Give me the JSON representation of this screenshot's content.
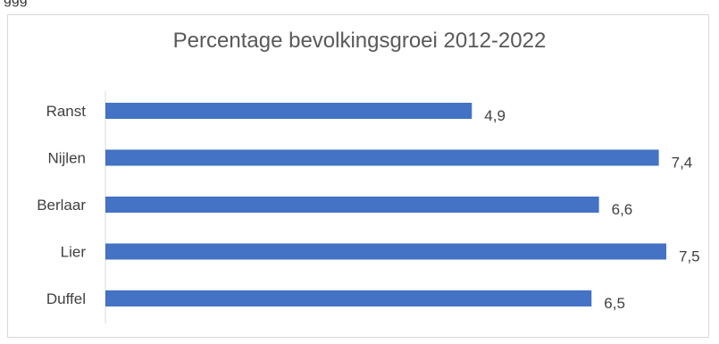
{
  "top_fragment": "ggg",
  "colors": {
    "bar": "#4472c4",
    "axis": "#d9d9d9",
    "text": "#404040",
    "title": "#595959"
  },
  "chart_data": {
    "type": "bar",
    "orientation": "horizontal",
    "title": "Percentage bevolkingsgroei 2012-2022",
    "categories": [
      "Ranst",
      "Nijlen",
      "Berlaar",
      "Lier",
      "Duffel"
    ],
    "values": [
      4.9,
      7.4,
      6.6,
      7.5,
      6.5
    ],
    "value_labels": [
      "4,9",
      "7,4",
      "6,6",
      "7,5",
      "6,5"
    ],
    "xlabel": "",
    "ylabel": "",
    "xlim": [
      0,
      7.5
    ],
    "grid": false,
    "legend": "none"
  }
}
